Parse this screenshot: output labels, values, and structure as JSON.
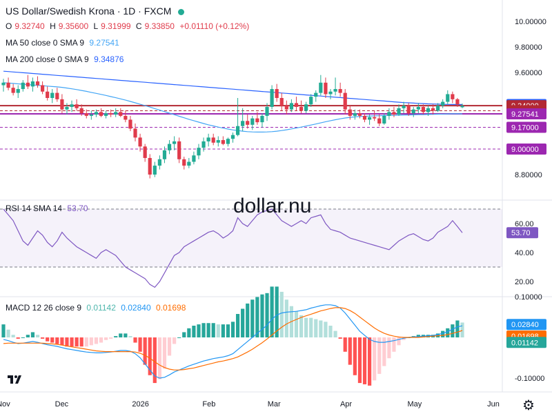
{
  "header": {
    "title": "US Dollar/Swedish Krona · 1D · FXCM",
    "ohlc": [
      {
        "k": "O",
        "v": "9.32740"
      },
      {
        "k": "H",
        "v": "9.35600"
      },
      {
        "k": "L",
        "v": "9.31999"
      },
      {
        "k": "C",
        "v": "9.33850"
      },
      {
        "k": "",
        "v": "+0.01110 (+0.12%)"
      }
    ],
    "ma50": {
      "label": "MA 50 close 0 SMA 9",
      "value": "9.27541"
    },
    "ma200": {
      "label": "MA 200 close 0 SMA 9",
      "value": "9.34876"
    }
  },
  "rsi_legend": {
    "label": "RSI 14 SMA 14",
    "value": "53.70"
  },
  "macd_legend": {
    "label": "MACD 12 26 close 9",
    "v1": "0.01142",
    "v2": "0.02840",
    "v3": "0.01698"
  },
  "watermark": "dollar.nu",
  "colors": {
    "up": "#22ab94",
    "down": "#e03b4b",
    "ma50": "#42a5f5",
    "ma200": "#2962ff",
    "rsi": "#7e57c2",
    "signal": "#ff6d00",
    "level_red": "#b22833",
    "level_purple": "#9c27b0"
  },
  "chart_data": [
    {
      "type": "candlestick",
      "panel": "price",
      "ylim": [
        8.72,
        10.04
      ],
      "y_ticks": [
        "10.00000",
        "9.80000",
        "9.60000",
        "8.80000"
      ],
      "x_ticks": [
        "Nov",
        "Dec",
        "2026",
        "Feb",
        "Mar",
        "Apr",
        "May",
        "Jun"
      ],
      "candles": [
        [
          9.5,
          9.55,
          9.45,
          9.52
        ],
        [
          9.52,
          9.56,
          9.46,
          9.48
        ],
        [
          9.48,
          9.51,
          9.42,
          9.44
        ],
        [
          9.44,
          9.5,
          9.4,
          9.47
        ],
        [
          9.47,
          9.54,
          9.45,
          9.52
        ],
        [
          9.52,
          9.58,
          9.47,
          9.49
        ],
        [
          9.49,
          9.56,
          9.45,
          9.53
        ],
        [
          9.53,
          9.57,
          9.48,
          9.5
        ],
        [
          9.5,
          9.53,
          9.43,
          9.45
        ],
        [
          9.45,
          9.49,
          9.38,
          9.4
        ],
        [
          9.4,
          9.47,
          9.36,
          9.44
        ],
        [
          9.44,
          9.48,
          9.37,
          9.39
        ],
        [
          9.39,
          9.43,
          9.28,
          9.31
        ],
        [
          9.31,
          9.36,
          9.27,
          9.33
        ],
        [
          9.33,
          9.38,
          9.29,
          9.35
        ],
        [
          9.35,
          9.39,
          9.3,
          9.32
        ],
        [
          9.32,
          9.35,
          9.26,
          9.28
        ],
        [
          9.28,
          9.31,
          9.24,
          9.26
        ],
        [
          9.26,
          9.3,
          9.23,
          9.27
        ],
        [
          9.27,
          9.31,
          9.25,
          9.29
        ],
        [
          9.29,
          9.32,
          9.25,
          9.26
        ],
        [
          9.26,
          9.3,
          9.24,
          9.28
        ],
        [
          9.28,
          9.31,
          9.25,
          9.27
        ],
        [
          9.27,
          9.32,
          9.25,
          9.29
        ],
        [
          9.29,
          9.32,
          9.25,
          9.26
        ],
        [
          9.26,
          9.3,
          9.21,
          9.23
        ],
        [
          9.23,
          9.26,
          9.14,
          9.16
        ],
        [
          9.16,
          9.2,
          9.06,
          9.09
        ],
        [
          9.09,
          9.12,
          8.98,
          9.02
        ],
        [
          9.02,
          9.04,
          8.9,
          8.93
        ],
        [
          8.93,
          8.96,
          8.77,
          8.8
        ],
        [
          8.8,
          8.9,
          8.78,
          8.87
        ],
        [
          8.87,
          8.95,
          8.84,
          8.92
        ],
        [
          8.92,
          9.02,
          8.89,
          8.99
        ],
        [
          8.99,
          9.07,
          8.96,
          9.04
        ],
        [
          9.04,
          9.1,
          8.99,
          9.06
        ],
        [
          9.06,
          9.09,
          8.89,
          8.92
        ],
        [
          8.92,
          8.94,
          8.84,
          8.87
        ],
        [
          8.87,
          8.93,
          8.85,
          8.9
        ],
        [
          8.9,
          8.98,
          8.88,
          8.95
        ],
        [
          8.95,
          9.04,
          8.92,
          9.01
        ],
        [
          9.01,
          9.09,
          8.98,
          9.06
        ],
        [
          9.06,
          9.12,
          9.02,
          9.09
        ],
        [
          9.09,
          9.12,
          9.03,
          9.05
        ],
        [
          9.05,
          9.1,
          9.02,
          9.07
        ],
        [
          9.07,
          9.1,
          9.03,
          9.04
        ],
        [
          9.04,
          9.09,
          9.02,
          9.08
        ],
        [
          9.08,
          9.13,
          9.05,
          9.11
        ],
        [
          9.11,
          9.4,
          9.1,
          9.18
        ],
        [
          9.18,
          9.32,
          9.14,
          9.22
        ],
        [
          9.22,
          9.27,
          9.16,
          9.19
        ],
        [
          9.19,
          9.26,
          9.15,
          9.24
        ],
        [
          9.24,
          9.29,
          9.19,
          9.21
        ],
        [
          9.21,
          9.28,
          9.17,
          9.26
        ],
        [
          9.26,
          9.36,
          9.22,
          9.33
        ],
        [
          9.33,
          9.5,
          9.31,
          9.47
        ],
        [
          9.47,
          9.51,
          9.37,
          9.4
        ],
        [
          9.4,
          9.44,
          9.3,
          9.34
        ],
        [
          9.34,
          9.38,
          9.27,
          9.31
        ],
        [
          9.31,
          9.39,
          9.29,
          9.36
        ],
        [
          9.36,
          9.41,
          9.3,
          9.33
        ],
        [
          9.33,
          9.38,
          9.28,
          9.3
        ],
        [
          9.3,
          9.37,
          9.28,
          9.35
        ],
        [
          9.35,
          9.43,
          9.33,
          9.41
        ],
        [
          9.41,
          9.46,
          9.37,
          9.44
        ],
        [
          9.44,
          9.58,
          9.42,
          9.52
        ],
        [
          9.52,
          9.56,
          9.4,
          9.43
        ],
        [
          9.43,
          9.47,
          9.39,
          9.45
        ],
        [
          9.45,
          9.56,
          9.42,
          9.47
        ],
        [
          9.47,
          9.52,
          9.41,
          9.44
        ],
        [
          9.44,
          9.47,
          9.27,
          9.31
        ],
        [
          9.31,
          9.34,
          9.23,
          9.26
        ],
        [
          9.26,
          9.31,
          9.23,
          9.28
        ],
        [
          9.28,
          9.31,
          9.24,
          9.26
        ],
        [
          9.26,
          9.28,
          9.21,
          9.23
        ],
        [
          9.23,
          9.27,
          9.19,
          9.25
        ],
        [
          9.25,
          9.3,
          9.22,
          9.24
        ],
        [
          9.24,
          9.27,
          9.18,
          9.2
        ],
        [
          9.2,
          9.28,
          9.19,
          9.26
        ],
        [
          9.26,
          9.32,
          9.23,
          9.29
        ],
        [
          9.29,
          9.33,
          9.25,
          9.27
        ],
        [
          9.27,
          9.35,
          9.26,
          9.32
        ],
        [
          9.32,
          9.37,
          9.28,
          9.34
        ],
        [
          9.34,
          9.36,
          9.26,
          9.28
        ],
        [
          9.28,
          9.33,
          9.25,
          9.31
        ],
        [
          9.31,
          9.36,
          9.28,
          9.33
        ],
        [
          9.33,
          9.35,
          9.27,
          9.29
        ],
        [
          9.29,
          9.34,
          9.26,
          9.32
        ],
        [
          9.32,
          9.35,
          9.27,
          9.3
        ],
        [
          9.3,
          9.36,
          9.29,
          9.34
        ],
        [
          9.34,
          9.39,
          9.32,
          9.37
        ],
        [
          9.37,
          9.46,
          9.35,
          9.43
        ],
        [
          9.43,
          9.45,
          9.36,
          9.39
        ],
        [
          9.39,
          9.4,
          9.33,
          9.35
        ],
        [
          9.3274,
          9.356,
          9.31999,
          9.3385
        ]
      ],
      "ma50": [
        9.52,
        9.517,
        9.514,
        9.511,
        9.508,
        9.505,
        9.502,
        9.499,
        9.496,
        9.493,
        9.49,
        9.487,
        9.483,
        9.478,
        9.472,
        9.466,
        9.459,
        9.452,
        9.444,
        9.436,
        9.428,
        9.42,
        9.411,
        9.402,
        9.393,
        9.383,
        9.373,
        9.362,
        9.351,
        9.34,
        9.329,
        9.317,
        9.305,
        9.293,
        9.281,
        9.269,
        9.257,
        9.245,
        9.233,
        9.222,
        9.211,
        9.2,
        9.19,
        9.181,
        9.172,
        9.164,
        9.157,
        9.15,
        9.145,
        9.14,
        9.136,
        9.134,
        9.133,
        9.133,
        9.134,
        9.136,
        9.14,
        9.145,
        9.151,
        9.158,
        9.165,
        9.172,
        9.18,
        9.188,
        9.196,
        9.205,
        9.214,
        9.222,
        9.23,
        9.237,
        9.243,
        9.248,
        9.252,
        9.255,
        9.257,
        9.259,
        9.26,
        9.261,
        9.262,
        9.263,
        9.264,
        9.265,
        9.266,
        9.267,
        9.268,
        9.269,
        9.27,
        9.271,
        9.272,
        9.273,
        9.274,
        9.275,
        9.276,
        9.276,
        9.27541
      ],
      "ma200": [
        9.61,
        9.607,
        9.604,
        9.601,
        9.598,
        9.595,
        9.592,
        9.589,
        9.586,
        9.583,
        9.58,
        9.577,
        9.574,
        9.571,
        9.568,
        9.565,
        9.562,
        9.559,
        9.556,
        9.553,
        9.55,
        9.547,
        9.544,
        9.541,
        9.538,
        9.535,
        9.532,
        9.529,
        9.526,
        9.523,
        9.52,
        9.517,
        9.514,
        9.511,
        9.508,
        9.505,
        9.502,
        9.499,
        9.496,
        9.493,
        9.49,
        9.487,
        9.484,
        9.481,
        9.478,
        9.475,
        9.472,
        9.469,
        9.466,
        9.463,
        9.46,
        9.457,
        9.454,
        9.451,
        9.448,
        9.445,
        9.442,
        9.439,
        9.436,
        9.433,
        9.43,
        9.427,
        9.424,
        9.421,
        9.418,
        9.415,
        9.412,
        9.409,
        9.406,
        9.403,
        9.4,
        9.397,
        9.394,
        9.391,
        9.388,
        9.385,
        9.382,
        9.379,
        9.376,
        9.373,
        9.37,
        9.367,
        9.364,
        9.362,
        9.36,
        9.358,
        9.356,
        9.354,
        9.353,
        9.352,
        9.351,
        9.35,
        9.349,
        9.349,
        9.34876
      ],
      "levels": [
        {
          "price": 9.34,
          "label": "9.34000",
          "color": "#b22833",
          "style": "solid"
        },
        {
          "price": 9.3,
          "label": "9.30000",
          "color": "#b22833",
          "style": "dashed"
        },
        {
          "price": 9.27541,
          "label": "9.27541",
          "color": "#9c27b0",
          "style": "solid"
        },
        {
          "price": 9.17,
          "label": "9.17000",
          "color": "#9c27b0",
          "style": "dashed"
        },
        {
          "price": 9.0,
          "label": "9.00000",
          "color": "#9c27b0",
          "style": "dashed"
        }
      ],
      "price_tags": [
        {
          "price": 9.34876,
          "label": "9.34876",
          "color": "#2962ff"
        },
        {
          "price": 9.3385,
          "label": "9.33850",
          "color": "#22ab94"
        }
      ]
    },
    {
      "type": "line",
      "panel": "rsi",
      "ylim": [
        10,
        75
      ],
      "y_ticks": [
        "60.00",
        "40.00",
        "20.00"
      ],
      "band": [
        30,
        70
      ],
      "values": [
        70,
        66,
        62,
        55,
        48,
        45,
        50,
        55,
        52,
        47,
        44,
        48,
        54,
        50,
        47,
        44,
        42,
        40,
        38,
        36,
        40,
        42,
        40,
        38,
        34,
        30,
        28,
        26,
        24,
        22,
        18,
        16,
        20,
        26,
        32,
        38,
        40,
        44,
        46,
        48,
        50,
        52,
        54,
        55,
        53,
        50,
        52,
        55,
        64,
        60,
        58,
        62,
        66,
        68,
        69,
        70,
        66,
        62,
        60,
        58,
        60,
        62,
        60,
        64,
        65,
        66,
        60,
        56,
        55,
        54,
        52,
        50,
        49,
        48,
        47,
        46,
        45,
        44,
        43,
        42,
        45,
        48,
        50,
        52,
        53,
        51,
        49,
        48,
        50,
        54,
        56,
        58,
        62,
        58,
        53.7
      ]
    },
    {
      "type": "macd",
      "panel": "macd",
      "ylim": [
        -0.12,
        0.12
      ],
      "y_ticks": [
        "0.10000",
        "-0.10000"
      ],
      "macd": [
        -0.005,
        -0.008,
        -0.012,
        -0.015,
        -0.014,
        -0.012,
        -0.01,
        -0.012,
        -0.015,
        -0.018,
        -0.02,
        -0.022,
        -0.025,
        -0.028,
        -0.03,
        -0.032,
        -0.034,
        -0.036,
        -0.037,
        -0.038,
        -0.038,
        -0.037,
        -0.036,
        -0.034,
        -0.032,
        -0.032,
        -0.034,
        -0.04,
        -0.05,
        -0.065,
        -0.08,
        -0.095,
        -0.1,
        -0.098,
        -0.092,
        -0.085,
        -0.08,
        -0.075,
        -0.07,
        -0.066,
        -0.062,
        -0.058,
        -0.055,
        -0.052,
        -0.05,
        -0.048,
        -0.045,
        -0.04,
        -0.03,
        -0.02,
        -0.01,
        0.0,
        0.01,
        0.02,
        0.03,
        0.045,
        0.055,
        0.06,
        0.062,
        0.063,
        0.064,
        0.066,
        0.068,
        0.072,
        0.075,
        0.078,
        0.08,
        0.08,
        0.078,
        0.072,
        0.06,
        0.045,
        0.03,
        0.015,
        0.005,
        -0.005,
        -0.01,
        -0.012,
        -0.012,
        -0.01,
        -0.008,
        -0.005,
        -0.002,
        0.0,
        0.001,
        0.002,
        0.003,
        0.004,
        0.005,
        0.007,
        0.01,
        0.014,
        0.02,
        0.026,
        0.0284
      ],
      "signal": [
        -0.015,
        -0.014,
        -0.014,
        -0.014,
        -0.014,
        -0.014,
        -0.014,
        -0.014,
        -0.014,
        -0.015,
        -0.016,
        -0.017,
        -0.019,
        -0.021,
        -0.023,
        -0.025,
        -0.027,
        -0.029,
        -0.031,
        -0.033,
        -0.034,
        -0.035,
        -0.035,
        -0.035,
        -0.035,
        -0.035,
        -0.035,
        -0.036,
        -0.039,
        -0.044,
        -0.051,
        -0.06,
        -0.068,
        -0.074,
        -0.078,
        -0.08,
        -0.08,
        -0.079,
        -0.077,
        -0.075,
        -0.072,
        -0.069,
        -0.066,
        -0.063,
        -0.06,
        -0.058,
        -0.055,
        -0.052,
        -0.048,
        -0.042,
        -0.036,
        -0.029,
        -0.021,
        -0.013,
        -0.004,
        0.006,
        0.016,
        0.025,
        0.033,
        0.039,
        0.044,
        0.049,
        0.053,
        0.057,
        0.061,
        0.065,
        0.068,
        0.071,
        0.073,
        0.073,
        0.071,
        0.066,
        0.059,
        0.05,
        0.041,
        0.032,
        0.023,
        0.016,
        0.01,
        0.006,
        0.003,
        0.001,
        0.0,
        0.0,
        0.0,
        0.0,
        0.001,
        0.002,
        0.003,
        0.004,
        0.005,
        0.007,
        0.01,
        0.013,
        0.01698
      ],
      "tags": [
        {
          "value": 0.0284,
          "label": "0.02840",
          "color": "#2196f3"
        },
        {
          "value": 0.01698,
          "label": "0.01698",
          "color": "#ff6d00"
        },
        {
          "value": 0.01142,
          "label": "0.01142",
          "color": "#26a69a"
        }
      ]
    }
  ]
}
